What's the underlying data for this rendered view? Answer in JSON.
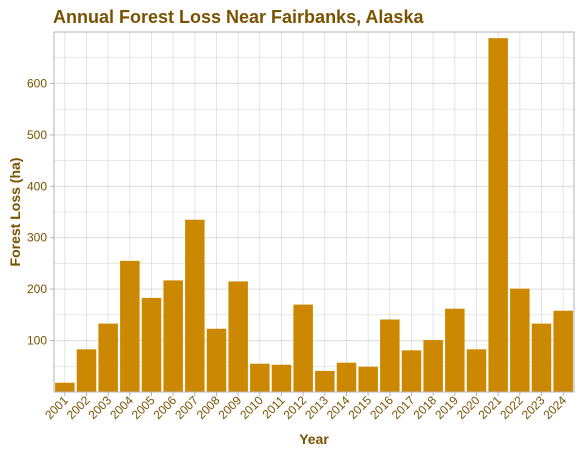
{
  "chart_data": {
    "type": "bar",
    "title": "Annual Forest Loss Near Fairbanks, Alaska",
    "xlabel": "Year",
    "ylabel": "Forest Loss (ha)",
    "categories": [
      "2001",
      "2002",
      "2003",
      "2004",
      "2005",
      "2006",
      "2007",
      "2008",
      "2009",
      "2010",
      "2011",
      "2012",
      "2013",
      "2014",
      "2015",
      "2016",
      "2017",
      "2018",
      "2019",
      "2020",
      "2021",
      "2022",
      "2023",
      "2024"
    ],
    "values": [
      18,
      83,
      133,
      255,
      183,
      217,
      335,
      123,
      215,
      55,
      53,
      170,
      41,
      57,
      49,
      141,
      81,
      101,
      162,
      83,
      688,
      201,
      133,
      158
    ],
    "ylim": [
      0,
      700
    ],
    "yticks": [
      100,
      200,
      300,
      400,
      500,
      600
    ],
    "grid": true,
    "legend": "none",
    "colors": {
      "bar": "#CC8800",
      "text": "#7A5200",
      "grid": "#DCDCDC",
      "border": "#B3B3B3"
    }
  }
}
